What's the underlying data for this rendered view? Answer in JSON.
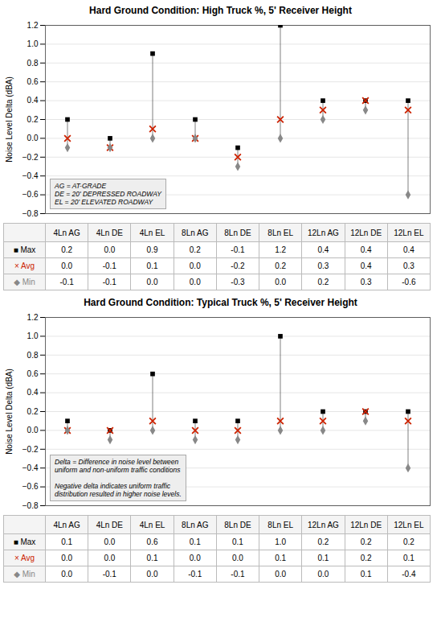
{
  "chart_data": [
    {
      "type": "range",
      "title": "Hard Ground Condition: High Truck %, 5' Receiver Height",
      "ylabel": "Noise Level Delta (dBA)",
      "annotation": "AG = AT-GRADE\nDE = 20' DEPRESSED ROADWAY\nEL = 20' ELEVATED ROADWAY",
      "categories": [
        "4Ln AG",
        "4Ln DE",
        "4Ln EL",
        "8Ln AG",
        "8Ln DE",
        "8Ln EL",
        "12Ln AG",
        "12Ln DE",
        "12Ln EL"
      ],
      "series": [
        {
          "name": "■ Max",
          "color": "#000000",
          "marker": "square",
          "values": [
            0.2,
            0.0,
            0.9,
            0.2,
            -0.1,
            1.2,
            0.4,
            0.4,
            0.4
          ],
          "value_labels": [
            "0.2",
            "0.0",
            "0.9",
            "0.2",
            "-0.1",
            "1.2",
            "0.4",
            "0.4",
            "0.4"
          ]
        },
        {
          "name": "× Avg",
          "color": "#cc2200",
          "marker": "x",
          "values": [
            0.0,
            -0.1,
            0.1,
            0.0,
            -0.2,
            0.2,
            0.3,
            0.4,
            0.3
          ],
          "value_labels": [
            "0.0",
            "-0.1",
            "0.1",
            "0.0",
            "-0.2",
            "0.2",
            "0.3",
            "0.4",
            "0.3"
          ]
        },
        {
          "name": "◆ Min",
          "color": "#888888",
          "marker": "diamond",
          "values": [
            -0.1,
            -0.1,
            0.0,
            0.0,
            -0.3,
            0.0,
            0.2,
            0.3,
            -0.6
          ],
          "value_labels": [
            "-0.1",
            "-0.1",
            "0.0",
            "0.0",
            "-0.3",
            "0.0",
            "0.2",
            "0.3",
            "-0.6"
          ]
        }
      ],
      "ylim": [
        -0.8,
        1.2
      ],
      "yticks": [
        {
          "value": -0.8,
          "label": "−0.8"
        },
        {
          "value": -0.6,
          "label": "−0.6"
        },
        {
          "value": -0.4,
          "label": "−0.4"
        },
        {
          "value": -0.2,
          "label": "−0.2"
        },
        {
          "value": 0.0,
          "label": "0.0"
        },
        0.2,
        0.4,
        0.6,
        0.8,
        {
          "value": 1.0,
          "label": "1.0"
        },
        1.2
      ],
      "grid": true,
      "tick_labels": "y"
    },
    {
      "type": "range",
      "title": "Hard Ground Condition: Typical Truck %, 5' Receiver Height",
      "ylabel": "Noise Level Delta (dBA)",
      "annotation": "Delta = Difference in noise level between\nuniform and non-uniform traffic conditions\n\nNegative delta indicates uniform traffic\ndistribution resulted in higher noise levels.",
      "categories": [
        "4Ln AG",
        "4Ln DE",
        "4Ln EL",
        "8Ln AG",
        "8Ln DE",
        "8Ln EL",
        "12Ln AG",
        "12Ln DE",
        "12Ln EL"
      ],
      "series": [
        {
          "name": "■ Max",
          "color": "#000000",
          "marker": "square",
          "values": [
            0.1,
            0.0,
            0.6,
            0.1,
            0.1,
            1.0,
            0.2,
            0.2,
            0.2
          ],
          "value_labels": [
            "0.1",
            "0.0",
            "0.6",
            "0.1",
            "0.1",
            "1.0",
            "0.2",
            "0.2",
            "0.2"
          ]
        },
        {
          "name": "× Avg",
          "color": "#cc2200",
          "marker": "x",
          "values": [
            0.0,
            0.0,
            0.1,
            0.0,
            0.0,
            0.1,
            0.1,
            0.2,
            0.1
          ],
          "value_labels": [
            "0.0",
            "0.0",
            "0.1",
            "0.0",
            "0.0",
            "0.1",
            "0.1",
            "0.2",
            "0.1"
          ]
        },
        {
          "name": "◆ Min",
          "color": "#888888",
          "marker": "diamond",
          "values": [
            0.0,
            -0.1,
            0.0,
            -0.1,
            -0.1,
            0.0,
            0.0,
            0.1,
            -0.4
          ],
          "value_labels": [
            "0.0",
            "-0.1",
            "0.0",
            "-0.1",
            "-0.1",
            "0.0",
            "0.0",
            "0.1",
            "-0.4"
          ]
        }
      ],
      "ylim": [
        -0.8,
        1.2
      ],
      "yticks": [
        {
          "value": -0.8,
          "label": "−0.8"
        },
        {
          "value": -0.6,
          "label": "−0.6"
        },
        {
          "value": -0.4,
          "label": "−0.4"
        },
        {
          "value": -0.2,
          "label": "−0.2"
        },
        {
          "value": 0.0,
          "label": "0.0"
        },
        0.2,
        0.4,
        0.6,
        0.8,
        {
          "value": 1.0,
          "label": "1.0"
        },
        1.2
      ],
      "grid": true,
      "tick_labels": "y"
    }
  ]
}
